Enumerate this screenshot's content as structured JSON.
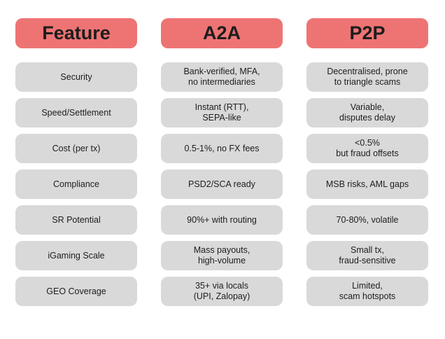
{
  "colors": {
    "header_bg": "#ee7474",
    "cell_bg": "#d9d9d9",
    "text": "#1d1d1d"
  },
  "headers": [
    "Feature",
    "A2A",
    "P2P"
  ],
  "features": [
    "Security",
    "Speed/Settlement",
    "Cost (per tx)",
    "Compliance",
    "SR Potential",
    "iGaming Scale",
    "GEO Coverage"
  ],
  "a2a": [
    "Bank-verified, MFA,\nno intermediaries",
    "Instant (RTT),\nSEPA-like",
    "0.5-1%, no FX fees",
    "PSD2/SCA ready",
    "90%+ with routing",
    "Mass payouts,\nhigh-volume",
    "35+ via locals\n(UPI, Zalopay)"
  ],
  "p2p": [
    "Decentralised, prone\nto triangle scams",
    "Variable,\ndisputes delay",
    "<0.5%\nbut fraud offsets",
    "MSB risks, AML gaps",
    "70-80%, volatile",
    "Small tx,\nfraud-sensitive",
    "Limited,\nscam hotspots"
  ]
}
